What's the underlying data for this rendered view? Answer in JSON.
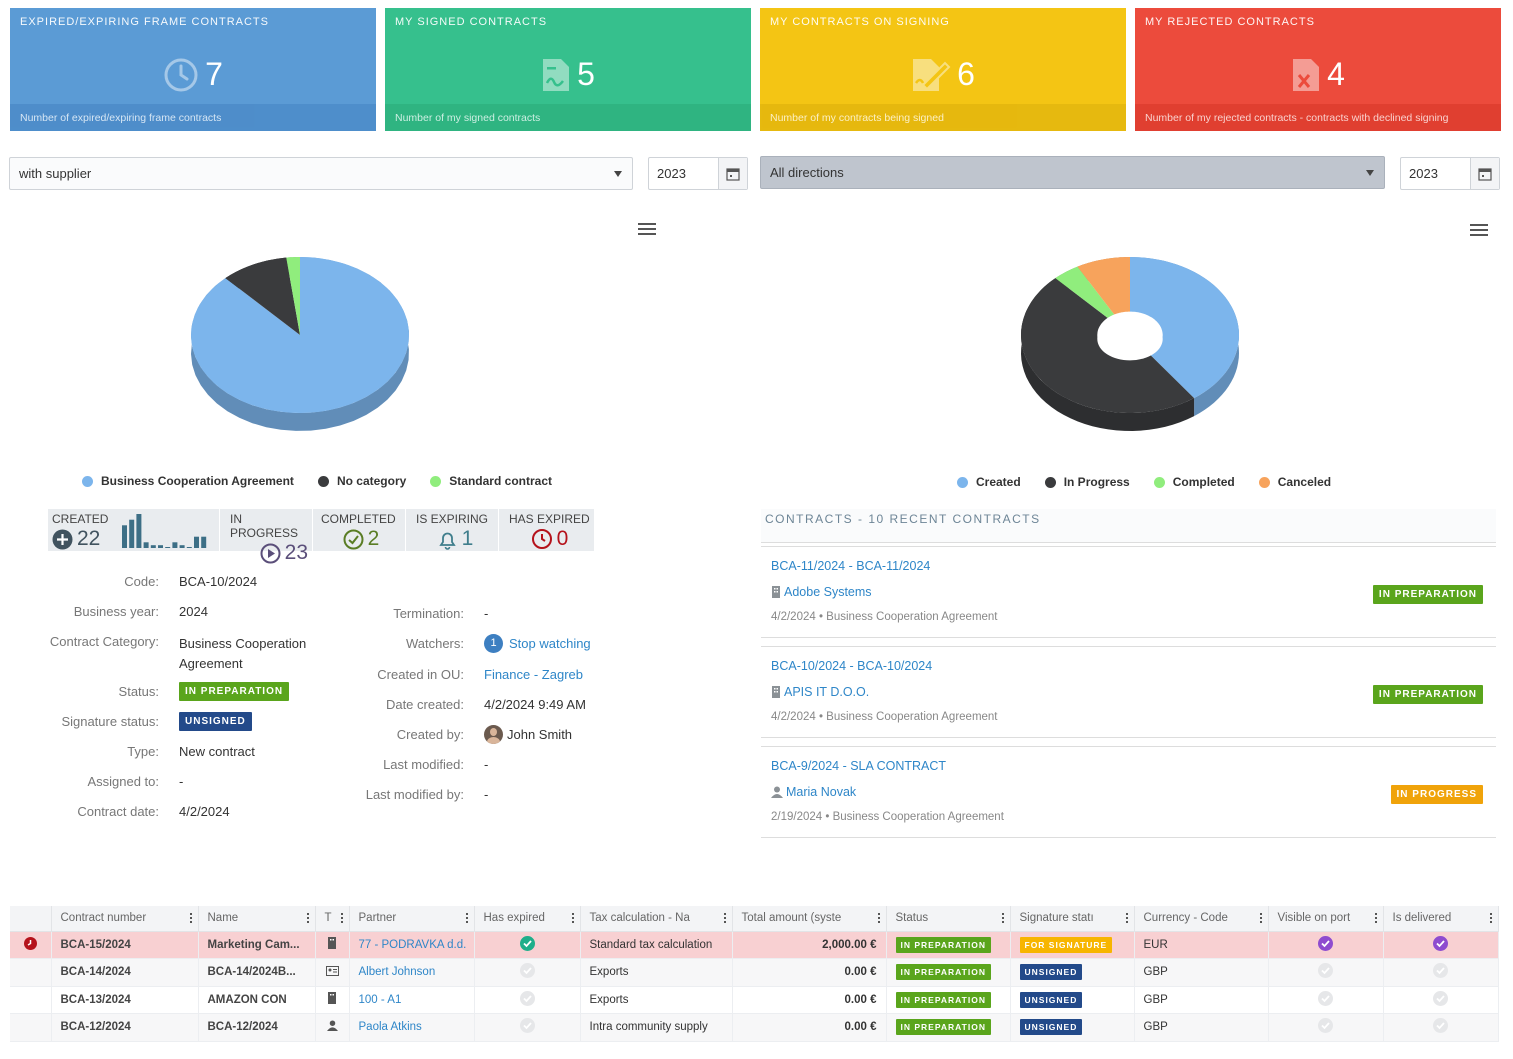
{
  "cards": [
    {
      "title": "EXPIRED/EXPIRING FRAME CONTRACTS",
      "value": "7",
      "footer": "Number of expired/expiring frame contracts",
      "icon": "clock-icon"
    },
    {
      "title": "MY SIGNED CONTRACTS",
      "value": "5",
      "footer": "Number of my signed contracts",
      "icon": "signed-document-icon"
    },
    {
      "title": "MY CONTRACTS ON SIGNING",
      "value": "6",
      "footer": "Number of my contracts being signed",
      "icon": "signing-document-icon"
    },
    {
      "title": "MY REJECTED CONTRACTS",
      "value": "4",
      "footer": "Number of my rejected contracts - contracts with declined signing",
      "icon": "rejected-document-icon"
    }
  ],
  "filters": {
    "left_select": "with supplier",
    "left_year": "2023",
    "right_select": "All directions",
    "right_year": "2023"
  },
  "chart_data": [
    {
      "type": "pie",
      "categories": [
        "Business Cooperation Agreement",
        "No category",
        "Standard contract"
      ],
      "values": [
        88,
        10,
        2
      ],
      "colors": [
        "#7cb5ec",
        "#3a3b3d",
        "#90ed7d"
      ],
      "legend": "bottom"
    },
    {
      "type": "pie",
      "subtype": "donut",
      "categories": [
        "Created",
        "In Progress",
        "Completed",
        "Canceled"
      ],
      "values": [
        40,
        48,
        4,
        8
      ],
      "colors": [
        "#7cb5ec",
        "#3a3b3d",
        "#90ed7d",
        "#f7a35c"
      ],
      "legend": "bottom"
    }
  ],
  "stats": {
    "created_label": "CREATED",
    "created": "22",
    "created_spark": [
      8,
      10,
      12,
      2,
      1,
      1,
      0,
      2,
      1,
      0,
      4,
      4
    ],
    "in_progress_label": "IN PROGRESS",
    "in_progress": "23",
    "completed_label": "COMPLETED",
    "completed": "2",
    "expiring_label": "IS EXPIRING",
    "expiring": "1",
    "expired_label": "HAS EXPIRED",
    "expired": "0"
  },
  "details": {
    "code_label": "Code:",
    "code": "BCA-10/2024",
    "year_label": "Business year:",
    "year": "2024",
    "category_label": "Contract Category:",
    "category_1": "Business Cooperation",
    "category_2": "Agreement",
    "status_label": "Status:",
    "status": "IN PREPARATION",
    "sig_label": "Signature status:",
    "sig": "UNSIGNED",
    "type_label": "Type:",
    "type": "New contract",
    "assigned_label": "Assigned to:",
    "assigned": "-",
    "date_label": "Contract date:",
    "date": "4/2/2024",
    "termination_label": "Termination:",
    "termination": "-",
    "watchers_label": "Watchers:",
    "watchers_count": "1",
    "watchers_link": "Stop watching",
    "ou_label": "Created in OU:",
    "ou": "Finance - Zagreb",
    "created_label": "Date created:",
    "created": "4/2/2024 9:49 AM",
    "createdby_label": "Created by:",
    "createdby": "John Smith",
    "modified_label": "Last modified:",
    "modified": "-",
    "modifiedby_label": "Last modified by:",
    "modifiedby": "-"
  },
  "recent": {
    "title": "CONTRACTS - 10 RECENT CONTRACTS",
    "items": [
      {
        "title": "BCA-11/2024 - BCA-11/2024",
        "partner": "Adobe Systems",
        "meta": "4/2/2024  •  Business Cooperation Agreement",
        "status": "IN PREPARATION"
      },
      {
        "title": "BCA-10/2024 - BCA-10/2024",
        "partner": "APIS IT D.O.O.",
        "meta": "4/2/2024  •  Business Cooperation Agreement",
        "status": "IN PREPARATION"
      },
      {
        "title": "BCA-9/2024 - SLA CONTRACT",
        "partner": "Maria Novak",
        "meta": "2/19/2024  •  Business Cooperation Agreement",
        "status": "IN PROGRESS"
      }
    ]
  },
  "table": {
    "columns": [
      "",
      "Contract number",
      "Name",
      "T",
      "Partner",
      "Has expired",
      "Tax calculation - Na",
      "Total amount (syste",
      "Status",
      "Signature statı",
      "Currency - Code",
      "Visible on port",
      "Is delivered"
    ],
    "rows": [
      {
        "number": "BCA-15/2024",
        "name": "Marketing Cam...",
        "partner": "77 - PODRAVKA d.d.",
        "tax": "Standard tax calculation",
        "amount": "2,000.00 €",
        "status": "IN PREPARATION",
        "sig": "FOR SIGNATURE",
        "currency": "EUR"
      },
      {
        "number": "BCA-14/2024",
        "name": "BCA-14/2024B...",
        "partner": "Albert Johnson",
        "tax": "Exports",
        "amount": "0.00 €",
        "status": "IN PREPARATION",
        "sig": "UNSIGNED",
        "currency": "GBP"
      },
      {
        "number": "BCA-13/2024",
        "name": "AMAZON CON",
        "partner": "100 - A1",
        "tax": "Exports",
        "amount": "0.00 €",
        "status": "IN PREPARATION",
        "sig": "UNSIGNED",
        "currency": "GBP"
      },
      {
        "number": "BCA-12/2024",
        "name": "BCA-12/2024",
        "partner": "Paola Atkins",
        "tax": "Intra community supply",
        "amount": "0.00 €",
        "status": "IN PREPARATION",
        "sig": "UNSIGNED",
        "currency": "GBP"
      }
    ]
  }
}
